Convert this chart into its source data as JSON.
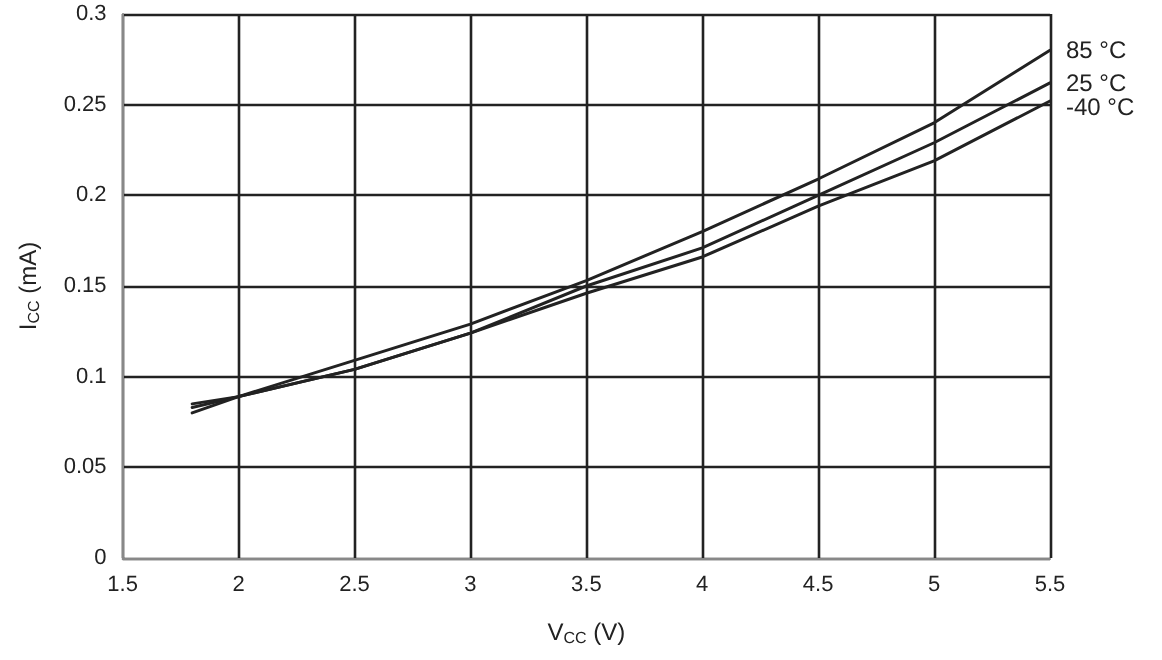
{
  "chart_data": {
    "type": "line",
    "xlabel": "V$_{CC}$ (V)",
    "ylabel": "I$_{CC}$ (mA)",
    "x": [
      1.8,
      2,
      2.5,
      3,
      3.5,
      4,
      4.5,
      5,
      5.5
    ],
    "series": [
      {
        "name": "85 °C",
        "color": "#222222",
        "values": [
          0.085,
          0.089,
          0.109,
          0.129,
          0.153,
          0.18,
          0.209,
          0.24,
          0.28
        ]
      },
      {
        "name": "25 °C",
        "color": "#222222",
        "values": [
          0.083,
          0.089,
          0.104,
          0.124,
          0.15,
          0.171,
          0.2,
          0.229,
          0.262
        ]
      },
      {
        "name": "-40 °C",
        "color": "#222222",
        "values": [
          0.08,
          0.089,
          0.104,
          0.124,
          0.146,
          0.166,
          0.194,
          0.219,
          0.252
        ]
      }
    ],
    "xlim": [
      1.5,
      5.5
    ],
    "xticks": [
      1.5,
      2,
      2.5,
      3,
      3.5,
      4,
      4.5,
      5,
      5.5
    ],
    "ylim": [
      0,
      0.3
    ],
    "yticks": [
      0,
      0.05,
      0.1,
      0.15,
      0.2,
      0.25,
      0.3
    ],
    "grid": true,
    "legend": false,
    "marker": "none",
    "line_style": "solid"
  }
}
